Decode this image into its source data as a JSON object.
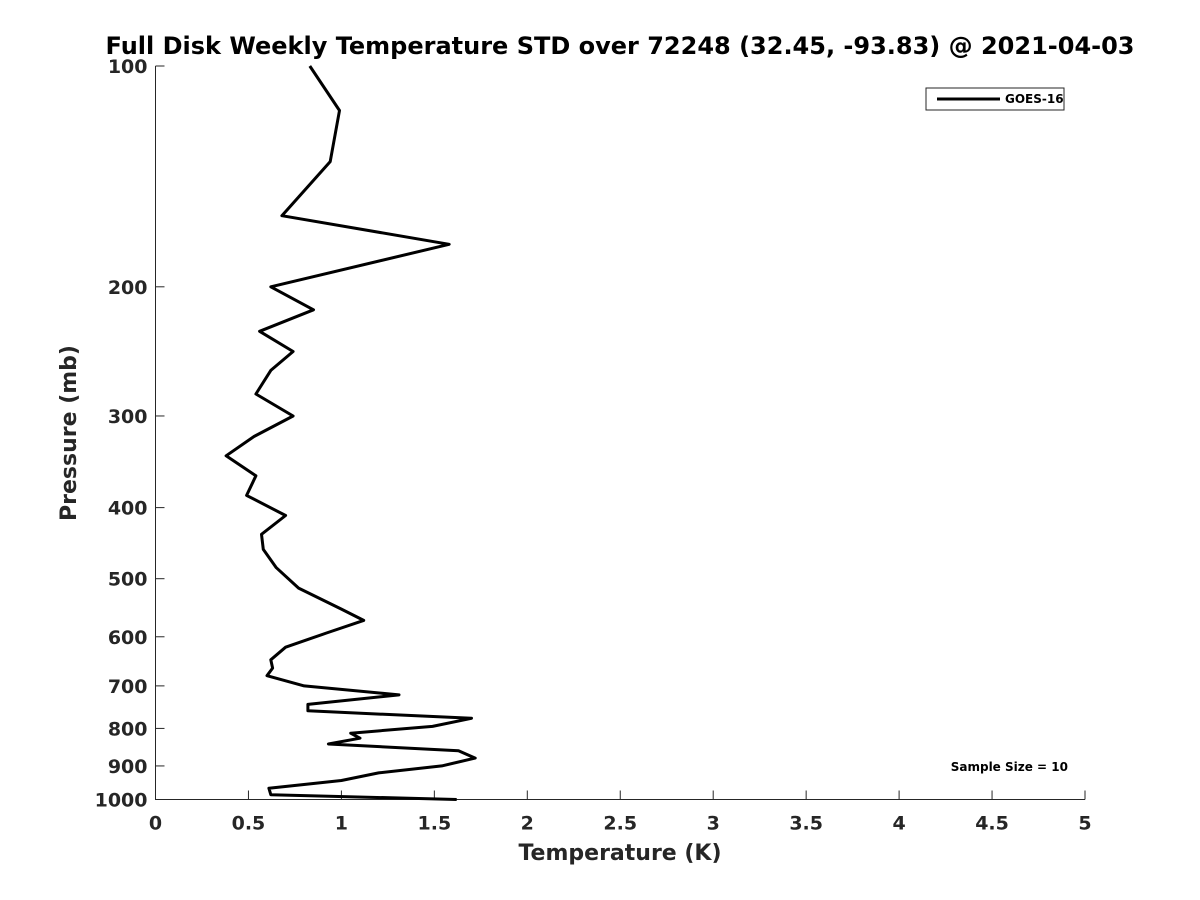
{
  "chart_data": {
    "type": "line",
    "title": "Full Disk Weekly Temperature STD over 72248 (32.45, -93.83) @ 2021-04-03",
    "xlabel": "Temperature (K)",
    "ylabel": "Pressure (mb)",
    "xlim": [
      0,
      5
    ],
    "ylim": [
      1000,
      100
    ],
    "y_scale": "log",
    "y_reversed": true,
    "xticks": [
      "0",
      "0.5",
      "1",
      "1.5",
      "2",
      "2.5",
      "3",
      "3.5",
      "4",
      "4.5",
      "5"
    ],
    "xtick_values": [
      0,
      0.5,
      1,
      1.5,
      2,
      2.5,
      3,
      3.5,
      4,
      4.5,
      5
    ],
    "yticks": [
      "100",
      "200",
      "300",
      "400",
      "500",
      "600",
      "700",
      "800",
      "900",
      "1000"
    ],
    "ytick_values": [
      100,
      200,
      300,
      400,
      500,
      600,
      700,
      800,
      900,
      1000
    ],
    "grid": false,
    "legend_position": "top-right",
    "annotation": "Sample Size = 10",
    "series": [
      {
        "name": "GOES-16",
        "color": "#000000",
        "points": [
          [
            0.83,
            100
          ],
          [
            0.99,
            115
          ],
          [
            0.94,
            135
          ],
          [
            0.68,
            160
          ],
          [
            1.58,
            175
          ],
          [
            0.62,
            200
          ],
          [
            0.85,
            215
          ],
          [
            0.56,
            230
          ],
          [
            0.74,
            245
          ],
          [
            0.62,
            260
          ],
          [
            0.54,
            280
          ],
          [
            0.74,
            300
          ],
          [
            0.53,
            320
          ],
          [
            0.38,
            340
          ],
          [
            0.54,
            362
          ],
          [
            0.49,
            385
          ],
          [
            0.7,
            410
          ],
          [
            0.57,
            435
          ],
          [
            0.58,
            456
          ],
          [
            0.65,
            483
          ],
          [
            0.77,
            515
          ],
          [
            1.0,
            550
          ],
          [
            1.12,
            570
          ],
          [
            0.92,
            593
          ],
          [
            0.7,
            620
          ],
          [
            0.62,
            645
          ],
          [
            0.63,
            662
          ],
          [
            0.6,
            678
          ],
          [
            0.8,
            700
          ],
          [
            1.31,
            720
          ],
          [
            0.82,
            742
          ],
          [
            0.82,
            757
          ],
          [
            1.7,
            775
          ],
          [
            1.49,
            795
          ],
          [
            1.05,
            812
          ],
          [
            1.1,
            825
          ],
          [
            0.93,
            840
          ],
          [
            1.63,
            858
          ],
          [
            1.72,
            878
          ],
          [
            1.54,
            900
          ],
          [
            1.2,
            920
          ],
          [
            1.0,
            942
          ],
          [
            0.61,
            965
          ],
          [
            0.62,
            985
          ],
          [
            1.62,
            1000
          ]
        ]
      }
    ]
  }
}
